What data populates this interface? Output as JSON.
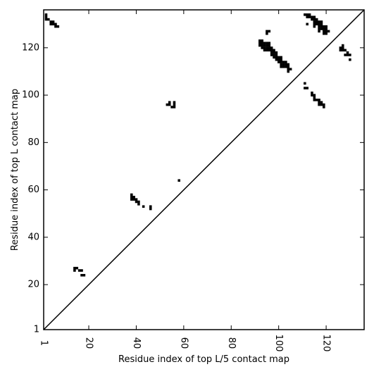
{
  "chart_data": {
    "type": "heatmap",
    "xlabel": "Residue index of top L/5 contact map",
    "ylabel": "Residue index of top L contact map",
    "xlim": [
      1,
      136
    ],
    "ylim": [
      1,
      136
    ],
    "x_ticks": [
      1,
      20,
      40,
      60,
      80,
      100,
      120
    ],
    "y_ticks": [
      1,
      20,
      40,
      60,
      80,
      100,
      120
    ],
    "diagonal": true,
    "grid": false,
    "cell_color": "#000000",
    "line_color": "#000000",
    "contacts": [
      [
        2,
        134
      ],
      [
        2,
        133
      ],
      [
        2,
        132
      ],
      [
        3,
        132
      ],
      [
        4,
        131
      ],
      [
        4,
        130
      ],
      [
        5,
        131
      ],
      [
        5,
        130
      ],
      [
        6,
        130
      ],
      [
        6,
        129
      ],
      [
        7,
        129
      ],
      [
        14,
        27
      ],
      [
        14,
        26
      ],
      [
        15,
        27
      ],
      [
        16,
        26
      ],
      [
        17,
        26
      ],
      [
        17,
        24
      ],
      [
        18,
        24
      ],
      [
        38,
        58
      ],
      [
        38,
        57
      ],
      [
        38,
        56
      ],
      [
        39,
        57
      ],
      [
        39,
        56
      ],
      [
        40,
        56
      ],
      [
        40,
        55
      ],
      [
        41,
        55
      ],
      [
        41,
        54
      ],
      [
        43,
        53
      ],
      [
        46,
        53
      ],
      [
        46,
        52
      ],
      [
        53,
        96
      ],
      [
        54,
        97
      ],
      [
        54,
        96
      ],
      [
        55,
        95
      ],
      [
        56,
        97
      ],
      [
        56,
        96
      ],
      [
        56,
        95
      ],
      [
        58,
        64
      ],
      [
        92,
        123
      ],
      [
        92,
        122
      ],
      [
        92,
        121
      ],
      [
        93,
        123
      ],
      [
        93,
        122
      ],
      [
        93,
        121
      ],
      [
        93,
        120
      ],
      [
        94,
        122
      ],
      [
        94,
        121
      ],
      [
        94,
        120
      ],
      [
        94,
        119
      ],
      [
        95,
        122
      ],
      [
        95,
        121
      ],
      [
        95,
        120
      ],
      [
        95,
        119
      ],
      [
        95,
        127
      ],
      [
        95,
        126
      ],
      [
        96,
        127
      ],
      [
        96,
        122
      ],
      [
        96,
        121
      ],
      [
        96,
        120
      ],
      [
        96,
        119
      ],
      [
        97,
        120
      ],
      [
        97,
        119
      ],
      [
        97,
        118
      ],
      [
        97,
        117
      ],
      [
        98,
        119
      ],
      [
        98,
        118
      ],
      [
        98,
        117
      ],
      [
        98,
        116
      ],
      [
        99,
        118
      ],
      [
        99,
        117
      ],
      [
        99,
        116
      ],
      [
        99,
        115
      ],
      [
        100,
        116
      ],
      [
        100,
        115
      ],
      [
        100,
        114
      ],
      [
        101,
        116
      ],
      [
        101,
        115
      ],
      [
        101,
        114
      ],
      [
        101,
        113
      ],
      [
        101,
        112
      ],
      [
        102,
        114
      ],
      [
        102,
        113
      ],
      [
        102,
        112
      ],
      [
        103,
        114
      ],
      [
        103,
        113
      ],
      [
        103,
        112
      ],
      [
        104,
        113
      ],
      [
        104,
        112
      ],
      [
        104,
        111
      ],
      [
        104,
        110
      ],
      [
        105,
        111
      ],
      [
        111,
        134
      ],
      [
        111,
        105
      ],
      [
        111,
        103
      ],
      [
        112,
        103
      ],
      [
        112,
        134
      ],
      [
        112,
        133
      ],
      [
        112,
        130
      ],
      [
        113,
        134
      ],
      [
        113,
        133
      ],
      [
        114,
        133
      ],
      [
        114,
        132
      ],
      [
        114,
        101
      ],
      [
        114,
        100
      ],
      [
        115,
        133
      ],
      [
        115,
        132
      ],
      [
        115,
        131
      ],
      [
        115,
        130
      ],
      [
        115,
        129
      ],
      [
        115,
        100
      ],
      [
        115,
        99
      ],
      [
        115,
        98
      ],
      [
        116,
        132
      ],
      [
        116,
        131
      ],
      [
        116,
        130
      ],
      [
        116,
        98
      ],
      [
        117,
        131
      ],
      [
        117,
        130
      ],
      [
        117,
        129
      ],
      [
        117,
        128
      ],
      [
        117,
        127
      ],
      [
        117,
        98
      ],
      [
        117,
        97
      ],
      [
        117,
        96
      ],
      [
        118,
        131
      ],
      [
        118,
        130
      ],
      [
        118,
        129
      ],
      [
        118,
        128
      ],
      [
        118,
        97
      ],
      [
        118,
        96
      ],
      [
        119,
        129
      ],
      [
        119,
        128
      ],
      [
        119,
        127
      ],
      [
        119,
        126
      ],
      [
        119,
        96
      ],
      [
        119,
        95
      ],
      [
        120,
        129
      ],
      [
        120,
        128
      ],
      [
        120,
        127
      ],
      [
        120,
        126
      ],
      [
        121,
        127
      ],
      [
        126,
        120
      ],
      [
        126,
        119
      ],
      [
        127,
        121
      ],
      [
        127,
        120
      ],
      [
        127,
        119
      ],
      [
        128,
        119
      ],
      [
        128,
        117
      ],
      [
        129,
        118
      ],
      [
        129,
        117
      ],
      [
        130,
        117
      ],
      [
        130,
        115
      ]
    ]
  }
}
